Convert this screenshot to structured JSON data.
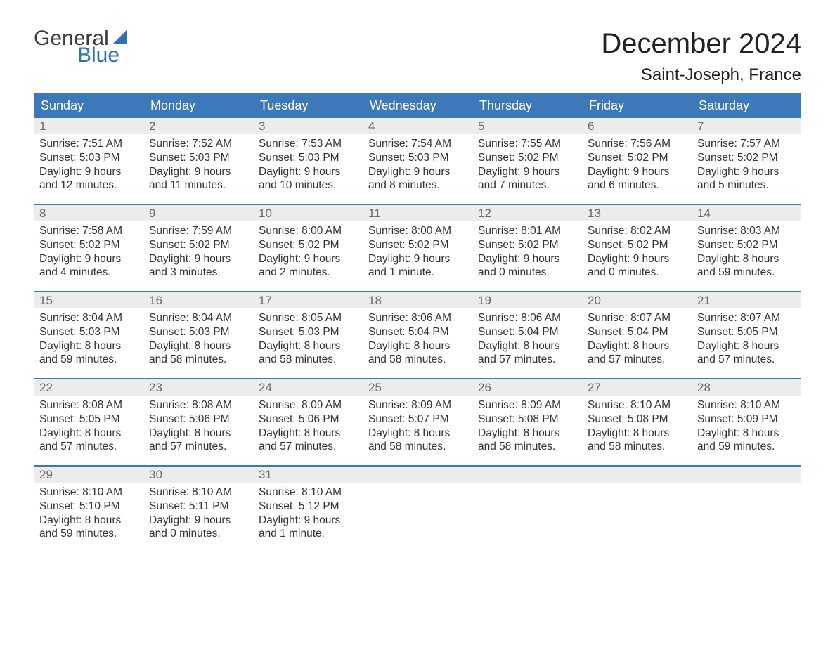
{
  "brand": {
    "word1": "General",
    "word2": "Blue",
    "word1_color": "#3b3b3b",
    "word2_color": "#2f6fb3",
    "sail_color": "#2f6fb3",
    "fontsize": 30
  },
  "header": {
    "month_title": "December 2024",
    "location": "Saint-Joseph, France",
    "title_fontsize": 40,
    "location_fontsize": 24,
    "title_color": "#222222"
  },
  "calendar": {
    "weekday_bg": "#3d78b8",
    "weekday_fg": "#ffffff",
    "week_border_color": "#3d78b8",
    "daynum_bg": "#ececec",
    "daynum_fg": "#6a6a6a",
    "body_fg": "#333333",
    "weekdays": [
      "Sunday",
      "Monday",
      "Tuesday",
      "Wednesday",
      "Thursday",
      "Friday",
      "Saturday"
    ],
    "weeks": [
      [
        {
          "n": "1",
          "sunrise": "Sunrise: 7:51 AM",
          "sunset": "Sunset: 5:03 PM",
          "d1": "Daylight: 9 hours",
          "d2": "and 12 minutes."
        },
        {
          "n": "2",
          "sunrise": "Sunrise: 7:52 AM",
          "sunset": "Sunset: 5:03 PM",
          "d1": "Daylight: 9 hours",
          "d2": "and 11 minutes."
        },
        {
          "n": "3",
          "sunrise": "Sunrise: 7:53 AM",
          "sunset": "Sunset: 5:03 PM",
          "d1": "Daylight: 9 hours",
          "d2": "and 10 minutes."
        },
        {
          "n": "4",
          "sunrise": "Sunrise: 7:54 AM",
          "sunset": "Sunset: 5:03 PM",
          "d1": "Daylight: 9 hours",
          "d2": "and 8 minutes."
        },
        {
          "n": "5",
          "sunrise": "Sunrise: 7:55 AM",
          "sunset": "Sunset: 5:02 PM",
          "d1": "Daylight: 9 hours",
          "d2": "and 7 minutes."
        },
        {
          "n": "6",
          "sunrise": "Sunrise: 7:56 AM",
          "sunset": "Sunset: 5:02 PM",
          "d1": "Daylight: 9 hours",
          "d2": "and 6 minutes."
        },
        {
          "n": "7",
          "sunrise": "Sunrise: 7:57 AM",
          "sunset": "Sunset: 5:02 PM",
          "d1": "Daylight: 9 hours",
          "d2": "and 5 minutes."
        }
      ],
      [
        {
          "n": "8",
          "sunrise": "Sunrise: 7:58 AM",
          "sunset": "Sunset: 5:02 PM",
          "d1": "Daylight: 9 hours",
          "d2": "and 4 minutes."
        },
        {
          "n": "9",
          "sunrise": "Sunrise: 7:59 AM",
          "sunset": "Sunset: 5:02 PM",
          "d1": "Daylight: 9 hours",
          "d2": "and 3 minutes."
        },
        {
          "n": "10",
          "sunrise": "Sunrise: 8:00 AM",
          "sunset": "Sunset: 5:02 PM",
          "d1": "Daylight: 9 hours",
          "d2": "and 2 minutes."
        },
        {
          "n": "11",
          "sunrise": "Sunrise: 8:00 AM",
          "sunset": "Sunset: 5:02 PM",
          "d1": "Daylight: 9 hours",
          "d2": "and 1 minute."
        },
        {
          "n": "12",
          "sunrise": "Sunrise: 8:01 AM",
          "sunset": "Sunset: 5:02 PM",
          "d1": "Daylight: 9 hours",
          "d2": "and 0 minutes."
        },
        {
          "n": "13",
          "sunrise": "Sunrise: 8:02 AM",
          "sunset": "Sunset: 5:02 PM",
          "d1": "Daylight: 9 hours",
          "d2": "and 0 minutes."
        },
        {
          "n": "14",
          "sunrise": "Sunrise: 8:03 AM",
          "sunset": "Sunset: 5:02 PM",
          "d1": "Daylight: 8 hours",
          "d2": "and 59 minutes."
        }
      ],
      [
        {
          "n": "15",
          "sunrise": "Sunrise: 8:04 AM",
          "sunset": "Sunset: 5:03 PM",
          "d1": "Daylight: 8 hours",
          "d2": "and 59 minutes."
        },
        {
          "n": "16",
          "sunrise": "Sunrise: 8:04 AM",
          "sunset": "Sunset: 5:03 PM",
          "d1": "Daylight: 8 hours",
          "d2": "and 58 minutes."
        },
        {
          "n": "17",
          "sunrise": "Sunrise: 8:05 AM",
          "sunset": "Sunset: 5:03 PM",
          "d1": "Daylight: 8 hours",
          "d2": "and 58 minutes."
        },
        {
          "n": "18",
          "sunrise": "Sunrise: 8:06 AM",
          "sunset": "Sunset: 5:04 PM",
          "d1": "Daylight: 8 hours",
          "d2": "and 58 minutes."
        },
        {
          "n": "19",
          "sunrise": "Sunrise: 8:06 AM",
          "sunset": "Sunset: 5:04 PM",
          "d1": "Daylight: 8 hours",
          "d2": "and 57 minutes."
        },
        {
          "n": "20",
          "sunrise": "Sunrise: 8:07 AM",
          "sunset": "Sunset: 5:04 PM",
          "d1": "Daylight: 8 hours",
          "d2": "and 57 minutes."
        },
        {
          "n": "21",
          "sunrise": "Sunrise: 8:07 AM",
          "sunset": "Sunset: 5:05 PM",
          "d1": "Daylight: 8 hours",
          "d2": "and 57 minutes."
        }
      ],
      [
        {
          "n": "22",
          "sunrise": "Sunrise: 8:08 AM",
          "sunset": "Sunset: 5:05 PM",
          "d1": "Daylight: 8 hours",
          "d2": "and 57 minutes."
        },
        {
          "n": "23",
          "sunrise": "Sunrise: 8:08 AM",
          "sunset": "Sunset: 5:06 PM",
          "d1": "Daylight: 8 hours",
          "d2": "and 57 minutes."
        },
        {
          "n": "24",
          "sunrise": "Sunrise: 8:09 AM",
          "sunset": "Sunset: 5:06 PM",
          "d1": "Daylight: 8 hours",
          "d2": "and 57 minutes."
        },
        {
          "n": "25",
          "sunrise": "Sunrise: 8:09 AM",
          "sunset": "Sunset: 5:07 PM",
          "d1": "Daylight: 8 hours",
          "d2": "and 58 minutes."
        },
        {
          "n": "26",
          "sunrise": "Sunrise: 8:09 AM",
          "sunset": "Sunset: 5:08 PM",
          "d1": "Daylight: 8 hours",
          "d2": "and 58 minutes."
        },
        {
          "n": "27",
          "sunrise": "Sunrise: 8:10 AM",
          "sunset": "Sunset: 5:08 PM",
          "d1": "Daylight: 8 hours",
          "d2": "and 58 minutes."
        },
        {
          "n": "28",
          "sunrise": "Sunrise: 8:10 AM",
          "sunset": "Sunset: 5:09 PM",
          "d1": "Daylight: 8 hours",
          "d2": "and 59 minutes."
        }
      ],
      [
        {
          "n": "29",
          "sunrise": "Sunrise: 8:10 AM",
          "sunset": "Sunset: 5:10 PM",
          "d1": "Daylight: 8 hours",
          "d2": "and 59 minutes."
        },
        {
          "n": "30",
          "sunrise": "Sunrise: 8:10 AM",
          "sunset": "Sunset: 5:11 PM",
          "d1": "Daylight: 9 hours",
          "d2": "and 0 minutes."
        },
        {
          "n": "31",
          "sunrise": "Sunrise: 8:10 AM",
          "sunset": "Sunset: 5:12 PM",
          "d1": "Daylight: 9 hours",
          "d2": "and 1 minute."
        },
        {
          "empty": true
        },
        {
          "empty": true
        },
        {
          "empty": true
        },
        {
          "empty": true
        }
      ]
    ]
  }
}
